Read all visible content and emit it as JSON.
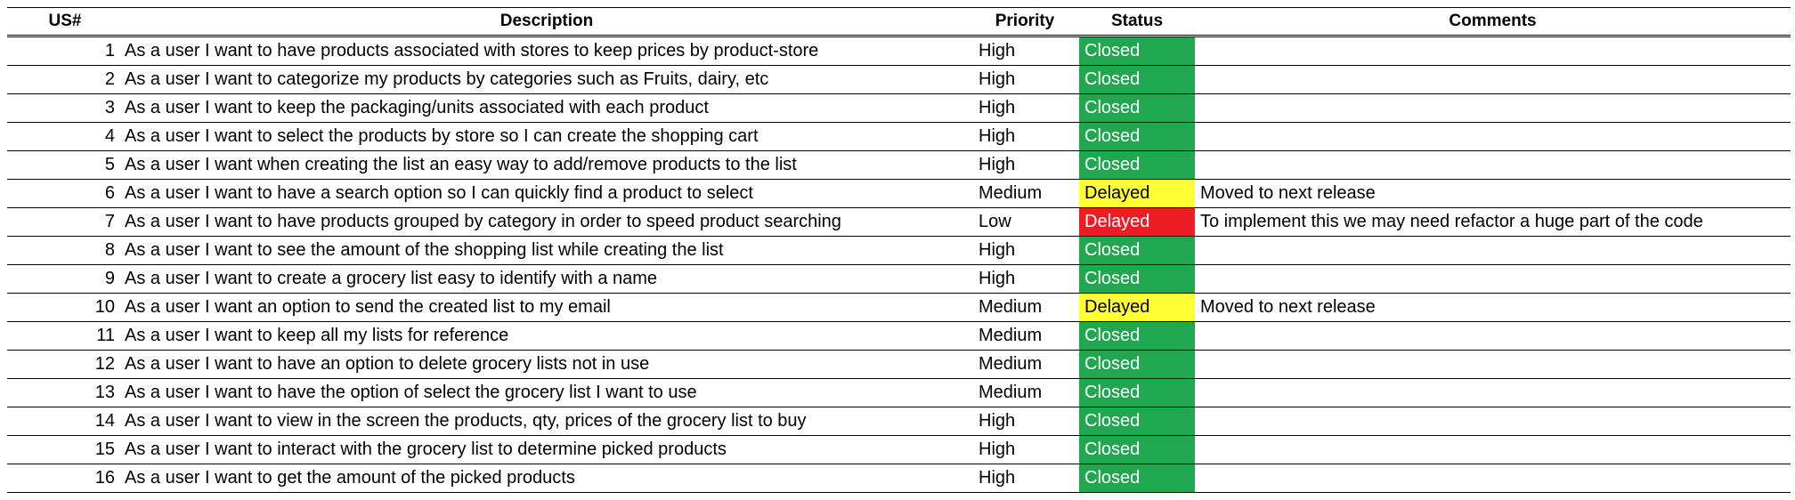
{
  "headers": {
    "us": "US#",
    "description": "Description",
    "priority": "Priority",
    "status": "Status",
    "comments": "Comments"
  },
  "colors": {
    "closed": "#1fa84f",
    "delayed_yellow": "#ffff33",
    "delayed_red": "#ee1c24"
  },
  "rows": [
    {
      "us": "1",
      "description": "As a user I want to have products associated with stores to keep prices by product-store",
      "priority": "High",
      "status": "Closed",
      "status_style": "closed",
      "comments": ""
    },
    {
      "us": "2",
      "description": "As a user I want to categorize my products by categories such as Fruits, dairy, etc",
      "priority": "High",
      "status": "Closed",
      "status_style": "closed",
      "comments": ""
    },
    {
      "us": "3",
      "description": "As a user I want to keep the packaging/units associated with each product",
      "priority": "High",
      "status": "Closed",
      "status_style": "closed",
      "comments": ""
    },
    {
      "us": "4",
      "description": "As a user I want to select the products by store so I can create the shopping cart",
      "priority": "High",
      "status": "Closed",
      "status_style": "closed",
      "comments": ""
    },
    {
      "us": "5",
      "description": "As a user I want when creating the list an easy way to add/remove products to the list",
      "priority": "High",
      "status": "Closed",
      "status_style": "closed",
      "comments": ""
    },
    {
      "us": "6",
      "description": "As a user I want to have a search option so I can quickly find a product to select",
      "priority": "Medium",
      "status": "Delayed",
      "status_style": "delayed-yellow",
      "comments": "Moved to next release"
    },
    {
      "us": "7",
      "description": "As a user I want to have products grouped by category in order to speed product searching",
      "priority": "Low",
      "status": "Delayed",
      "status_style": "delayed-red",
      "comments": "To implement this we may need refactor a huge part of the code"
    },
    {
      "us": "8",
      "description": "As a user I want to see the amount of the shopping list while creating the list",
      "priority": "High",
      "status": "Closed",
      "status_style": "closed",
      "comments": ""
    },
    {
      "us": "9",
      "description": "As a user I want to create a grocery list easy to identify with a name",
      "priority": "High",
      "status": "Closed",
      "status_style": "closed",
      "comments": ""
    },
    {
      "us": "10",
      "description": "As a user I want an option to send the created list to my email",
      "priority": "Medium",
      "status": "Delayed",
      "status_style": "delayed-yellow",
      "comments": "Moved to next release"
    },
    {
      "us": "11",
      "description": "As a user I want to keep all my lists for reference",
      "priority": "Medium",
      "status": "Closed",
      "status_style": "closed",
      "comments": ""
    },
    {
      "us": "12",
      "description": "As a user I want to have an option to delete grocery lists not in use",
      "priority": "Medium",
      "status": "Closed",
      "status_style": "closed",
      "comments": ""
    },
    {
      "us": "13",
      "description": "As a user I want to have the option of select the grocery list I want to use",
      "priority": "Medium",
      "status": "Closed",
      "status_style": "closed",
      "comments": ""
    },
    {
      "us": "14",
      "description": "As a user I want to view in the screen the products, qty, prices of the grocery list to buy",
      "priority": "High",
      "status": "Closed",
      "status_style": "closed",
      "comments": ""
    },
    {
      "us": "15",
      "description": "As a user I want to interact with the grocery list to determine picked products",
      "priority": "High",
      "status": "Closed",
      "status_style": "closed",
      "comments": ""
    },
    {
      "us": "16",
      "description": "As a user I want to get the amount of the picked products",
      "priority": "High",
      "status": "Closed",
      "status_style": "closed",
      "comments": ""
    }
  ]
}
